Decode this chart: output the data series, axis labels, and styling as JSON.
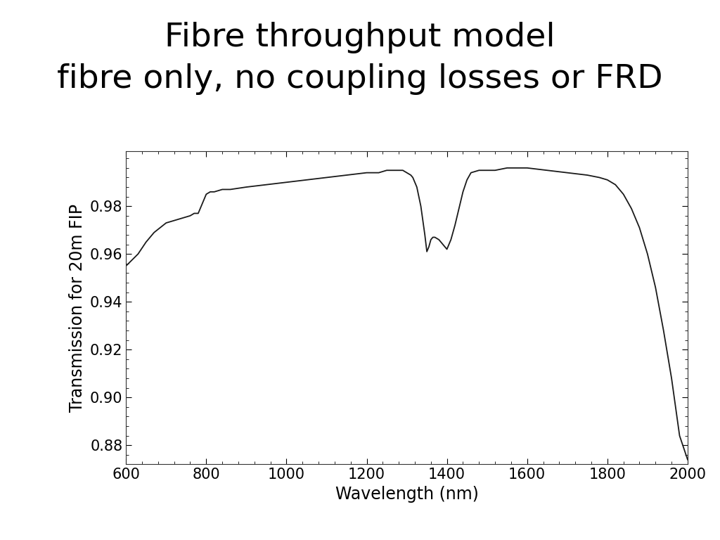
{
  "title": "Fibre throughput model\nfibre only, no coupling losses or FRD",
  "xlabel": "Wavelength (nm)",
  "ylabel": "Transmission for 20m FIP",
  "xlim": [
    600,
    2000
  ],
  "ylim": [
    0.872,
    1.003
  ],
  "yticks": [
    0.88,
    0.9,
    0.92,
    0.94,
    0.96,
    0.98
  ],
  "xticks": [
    600,
    800,
    1000,
    1200,
    1400,
    1600,
    1800,
    2000
  ],
  "background_color": "#ffffff",
  "line_color": "#1a1a1a",
  "line_width": 1.3,
  "title_fontsize": 34,
  "axis_fontsize": 17,
  "tick_fontsize": 15,
  "x": [
    600,
    630,
    650,
    660,
    670,
    685,
    700,
    720,
    740,
    760,
    770,
    780,
    800,
    810,
    820,
    840,
    860,
    900,
    950,
    1000,
    1050,
    1100,
    1150,
    1200,
    1230,
    1250,
    1270,
    1290,
    1300,
    1310,
    1315,
    1320,
    1325,
    1330,
    1335,
    1340,
    1345,
    1350,
    1355,
    1360,
    1365,
    1370,
    1380,
    1390,
    1395,
    1400,
    1410,
    1420,
    1430,
    1440,
    1450,
    1460,
    1480,
    1500,
    1520,
    1550,
    1580,
    1600,
    1650,
    1700,
    1750,
    1780,
    1800,
    1820,
    1840,
    1860,
    1880,
    1900,
    1920,
    1940,
    1960,
    1980,
    2000
  ],
  "y": [
    0.955,
    0.96,
    0.965,
    0.967,
    0.969,
    0.971,
    0.973,
    0.974,
    0.975,
    0.976,
    0.977,
    0.977,
    0.985,
    0.986,
    0.986,
    0.987,
    0.987,
    0.988,
    0.989,
    0.99,
    0.991,
    0.992,
    0.993,
    0.994,
    0.994,
    0.995,
    0.995,
    0.995,
    0.994,
    0.993,
    0.992,
    0.99,
    0.988,
    0.984,
    0.98,
    0.974,
    0.968,
    0.961,
    0.963,
    0.966,
    0.967,
    0.967,
    0.966,
    0.964,
    0.963,
    0.962,
    0.966,
    0.972,
    0.979,
    0.986,
    0.991,
    0.994,
    0.995,
    0.995,
    0.995,
    0.996,
    0.996,
    0.996,
    0.995,
    0.994,
    0.993,
    0.992,
    0.991,
    0.989,
    0.985,
    0.979,
    0.971,
    0.96,
    0.946,
    0.928,
    0.908,
    0.884,
    0.874
  ]
}
